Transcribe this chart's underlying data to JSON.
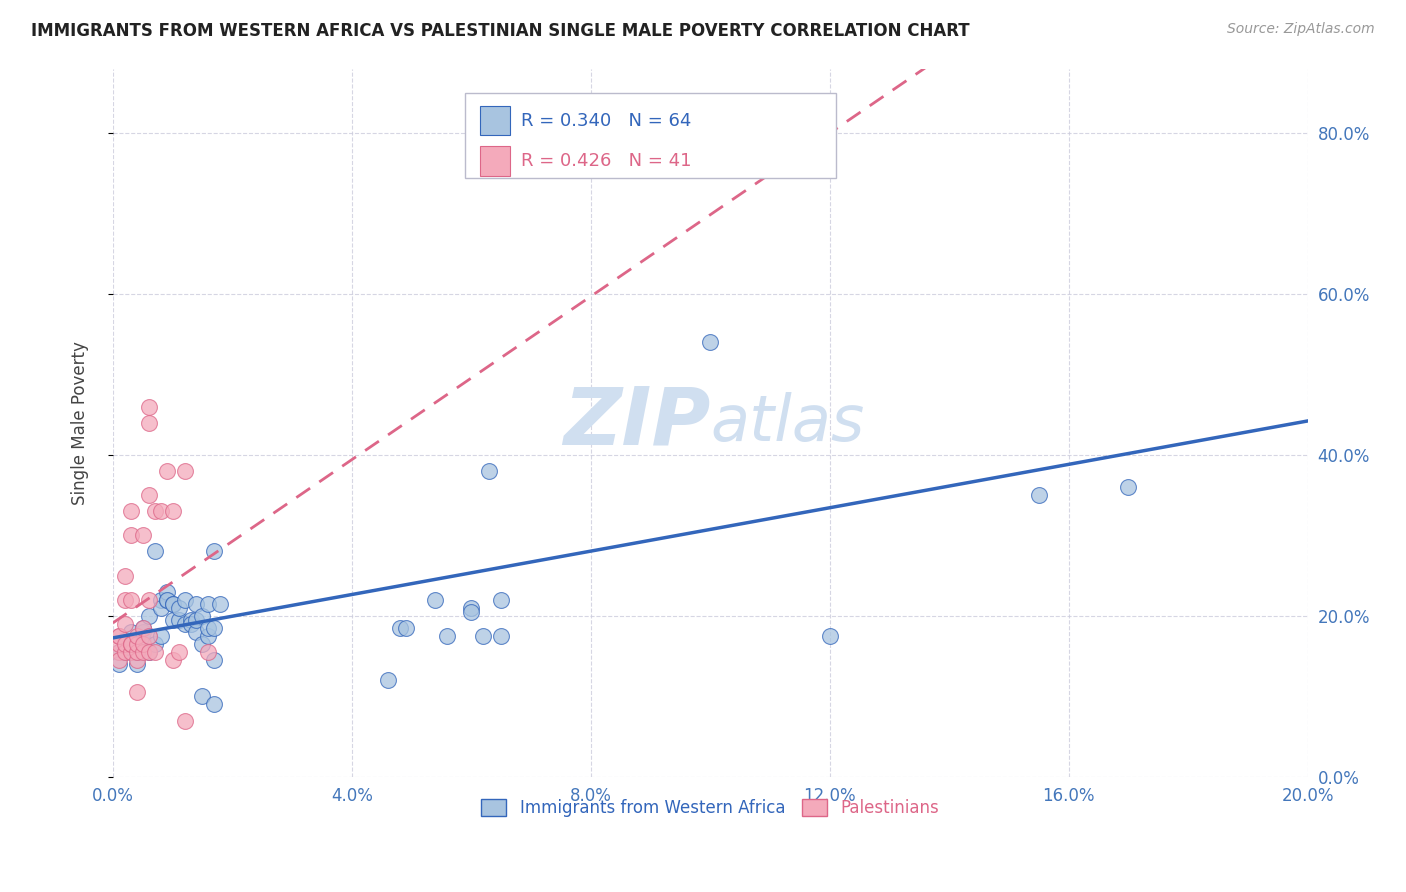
{
  "title": "IMMIGRANTS FROM WESTERN AFRICA VS PALESTINIAN SINGLE MALE POVERTY CORRELATION CHART",
  "source": "Source: ZipAtlas.com",
  "ylabel": "Single Male Poverty",
  "legend_label1": "Immigrants from Western Africa",
  "legend_label2": "Palestinians",
  "R1": 0.34,
  "N1": 64,
  "R2": 0.426,
  "N2": 41,
  "color1": "#A8C4E0",
  "color2": "#F4AABB",
  "trendline1_color": "#3366BB",
  "trendline2_color": "#DD6688",
  "watermark_zip": "ZIP",
  "watermark_atlas": "atlas",
  "watermark_color": "#D0DFF0",
  "xmin": 0.0,
  "xmax": 0.2,
  "ymin": 0.0,
  "ymax": 0.88,
  "blue_dots": [
    [
      0.001,
      0.155
    ],
    [
      0.001,
      0.14
    ],
    [
      0.002,
      0.155
    ],
    [
      0.002,
      0.17
    ],
    [
      0.002,
      0.165
    ],
    [
      0.003,
      0.155
    ],
    [
      0.003,
      0.18
    ],
    [
      0.003,
      0.16
    ],
    [
      0.004,
      0.14
    ],
    [
      0.004,
      0.165
    ],
    [
      0.004,
      0.155
    ],
    [
      0.005,
      0.17
    ],
    [
      0.005,
      0.18
    ],
    [
      0.005,
      0.185
    ],
    [
      0.006,
      0.175
    ],
    [
      0.006,
      0.155
    ],
    [
      0.006,
      0.2
    ],
    [
      0.007,
      0.165
    ],
    [
      0.007,
      0.28
    ],
    [
      0.008,
      0.22
    ],
    [
      0.008,
      0.21
    ],
    [
      0.008,
      0.175
    ],
    [
      0.009,
      0.22
    ],
    [
      0.009,
      0.23
    ],
    [
      0.009,
      0.22
    ],
    [
      0.01,
      0.215
    ],
    [
      0.01,
      0.215
    ],
    [
      0.01,
      0.195
    ],
    [
      0.011,
      0.195
    ],
    [
      0.011,
      0.21
    ],
    [
      0.012,
      0.22
    ],
    [
      0.012,
      0.19
    ],
    [
      0.013,
      0.195
    ],
    [
      0.013,
      0.19
    ],
    [
      0.014,
      0.18
    ],
    [
      0.014,
      0.195
    ],
    [
      0.014,
      0.215
    ],
    [
      0.015,
      0.2
    ],
    [
      0.015,
      0.165
    ],
    [
      0.015,
      0.1
    ],
    [
      0.016,
      0.175
    ],
    [
      0.016,
      0.185
    ],
    [
      0.016,
      0.215
    ],
    [
      0.017,
      0.28
    ],
    [
      0.017,
      0.185
    ],
    [
      0.017,
      0.145
    ],
    [
      0.017,
      0.09
    ],
    [
      0.018,
      0.215
    ],
    [
      0.046,
      0.12
    ],
    [
      0.048,
      0.185
    ],
    [
      0.049,
      0.185
    ],
    [
      0.054,
      0.22
    ],
    [
      0.056,
      0.175
    ],
    [
      0.06,
      0.21
    ],
    [
      0.06,
      0.205
    ],
    [
      0.062,
      0.175
    ],
    [
      0.063,
      0.38
    ],
    [
      0.065,
      0.22
    ],
    [
      0.065,
      0.175
    ],
    [
      0.07,
      0.76
    ],
    [
      0.1,
      0.54
    ],
    [
      0.12,
      0.175
    ],
    [
      0.155,
      0.35
    ],
    [
      0.17,
      0.36
    ]
  ],
  "pink_dots": [
    [
      0.001,
      0.155
    ],
    [
      0.001,
      0.145
    ],
    [
      0.001,
      0.165
    ],
    [
      0.001,
      0.175
    ],
    [
      0.001,
      0.175
    ],
    [
      0.002,
      0.155
    ],
    [
      0.002,
      0.165
    ],
    [
      0.002,
      0.19
    ],
    [
      0.002,
      0.22
    ],
    [
      0.002,
      0.25
    ],
    [
      0.003,
      0.155
    ],
    [
      0.003,
      0.165
    ],
    [
      0.003,
      0.165
    ],
    [
      0.003,
      0.22
    ],
    [
      0.003,
      0.3
    ],
    [
      0.003,
      0.33
    ],
    [
      0.004,
      0.145
    ],
    [
      0.004,
      0.155
    ],
    [
      0.004,
      0.165
    ],
    [
      0.004,
      0.175
    ],
    [
      0.004,
      0.105
    ],
    [
      0.005,
      0.155
    ],
    [
      0.005,
      0.165
    ],
    [
      0.005,
      0.185
    ],
    [
      0.005,
      0.3
    ],
    [
      0.006,
      0.155
    ],
    [
      0.006,
      0.175
    ],
    [
      0.006,
      0.22
    ],
    [
      0.006,
      0.35
    ],
    [
      0.006,
      0.44
    ],
    [
      0.006,
      0.46
    ],
    [
      0.007,
      0.155
    ],
    [
      0.007,
      0.33
    ],
    [
      0.008,
      0.33
    ],
    [
      0.009,
      0.38
    ],
    [
      0.01,
      0.145
    ],
    [
      0.01,
      0.33
    ],
    [
      0.011,
      0.155
    ],
    [
      0.012,
      0.38
    ],
    [
      0.012,
      0.07
    ],
    [
      0.016,
      0.155
    ]
  ]
}
